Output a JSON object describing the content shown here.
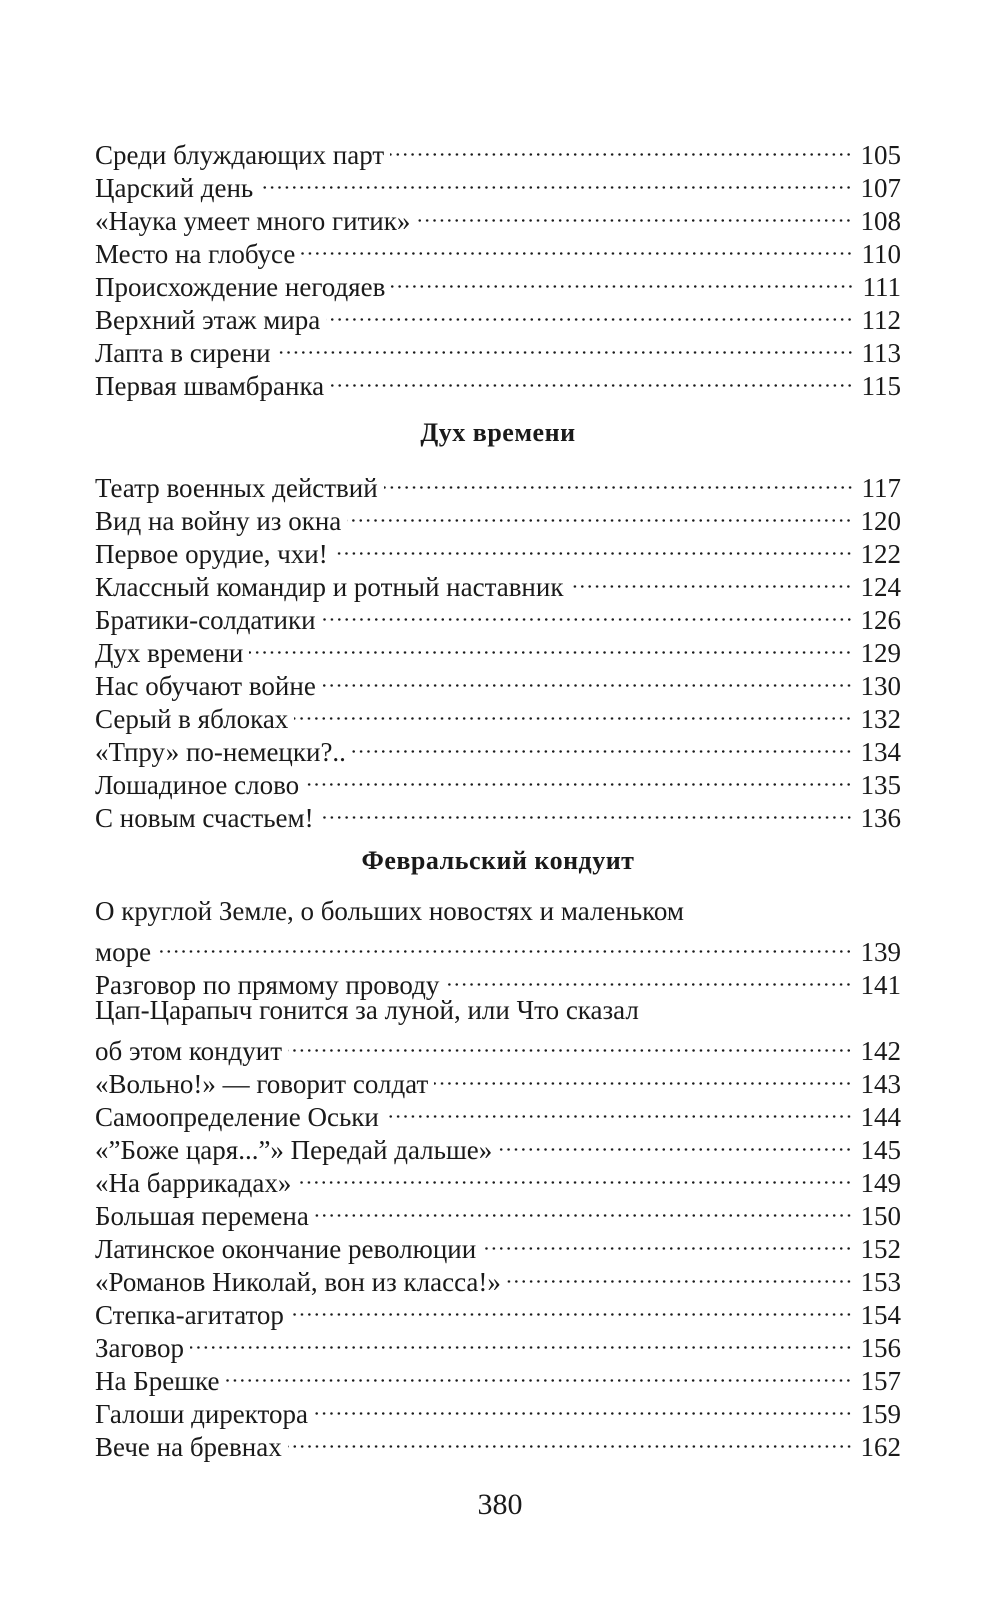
{
  "sections": [
    {
      "heading": "",
      "entries": [
        {
          "lines": [
            "Среди блуждающих парт"
          ],
          "page": "105"
        },
        {
          "lines": [
            "Царский день"
          ],
          "page": "107"
        },
        {
          "lines": [
            "«Наука умеет много гитик»"
          ],
          "page": "108"
        },
        {
          "lines": [
            "Место на глобусе"
          ],
          "page": "110"
        },
        {
          "lines": [
            "Происхождение негодяев"
          ],
          "page": "111"
        },
        {
          "lines": [
            "Верхний этаж мира"
          ],
          "page": "112"
        },
        {
          "lines": [
            "Лапта в сирени"
          ],
          "page": "113"
        },
        {
          "lines": [
            "Первая швамбранка"
          ],
          "page": "115"
        }
      ]
    },
    {
      "heading": "Дух времени",
      "entries": [
        {
          "lines": [
            "Театр военных действий"
          ],
          "page": "117"
        },
        {
          "lines": [
            "Вид на войну из окна"
          ],
          "page": "120"
        },
        {
          "lines": [
            "Первое орудие, чхи!"
          ],
          "page": "122"
        },
        {
          "lines": [
            "Классный командир и ротный наставник"
          ],
          "page": "124"
        },
        {
          "lines": [
            "Братики-солдатики"
          ],
          "page": "126"
        },
        {
          "lines": [
            "Дух времени"
          ],
          "page": "129"
        },
        {
          "lines": [
            "Нас обучают войне"
          ],
          "page": "130"
        },
        {
          "lines": [
            "Серый в яблоках"
          ],
          "page": "132"
        },
        {
          "lines": [
            "«Тпру» по-немецки?.."
          ],
          "page": "134"
        },
        {
          "lines": [
            "Лошадиное слово"
          ],
          "page": "135"
        },
        {
          "lines": [
            "С новым счастьем!"
          ],
          "page": "136"
        }
      ]
    },
    {
      "heading": "Февральский кондуит",
      "entries": [
        {
          "lines": [
            "О круглой Земле, о больших новостях и маленьком",
            "море"
          ],
          "page": "139"
        },
        {
          "lines": [
            "Разговор по прямому проводу"
          ],
          "page": "141"
        },
        {
          "lines": [
            "Цап-Царапыч гонится за луной, или Что сказал",
            "об этом кондуит"
          ],
          "page": "142"
        },
        {
          "lines": [
            "«Вольно!» — говорит солдат"
          ],
          "page": "143"
        },
        {
          "lines": [
            "Самоопределение Оськи"
          ],
          "page": "144"
        },
        {
          "lines": [
            "«”Боже царя...”» Передай дальше»"
          ],
          "page": "145"
        },
        {
          "lines": [
            "«На баррикадах»"
          ],
          "page": "149"
        },
        {
          "lines": [
            "Большая перемена"
          ],
          "page": "150"
        },
        {
          "lines": [
            "Латинское окончание революции"
          ],
          "page": "152"
        },
        {
          "lines": [
            "«Романов Николай, вон из класса!»"
          ],
          "page": "153"
        },
        {
          "lines": [
            "Степка-агитатор"
          ],
          "page": "154"
        },
        {
          "lines": [
            "Заговор"
          ],
          "page": "156"
        },
        {
          "lines": [
            "На Брешке"
          ],
          "page": "157"
        },
        {
          "lines": [
            "Галоши директора"
          ],
          "page": "159"
        },
        {
          "lines": [
            "Вече на бревнах"
          ],
          "page": "162"
        }
      ]
    }
  ],
  "folio": "380"
}
